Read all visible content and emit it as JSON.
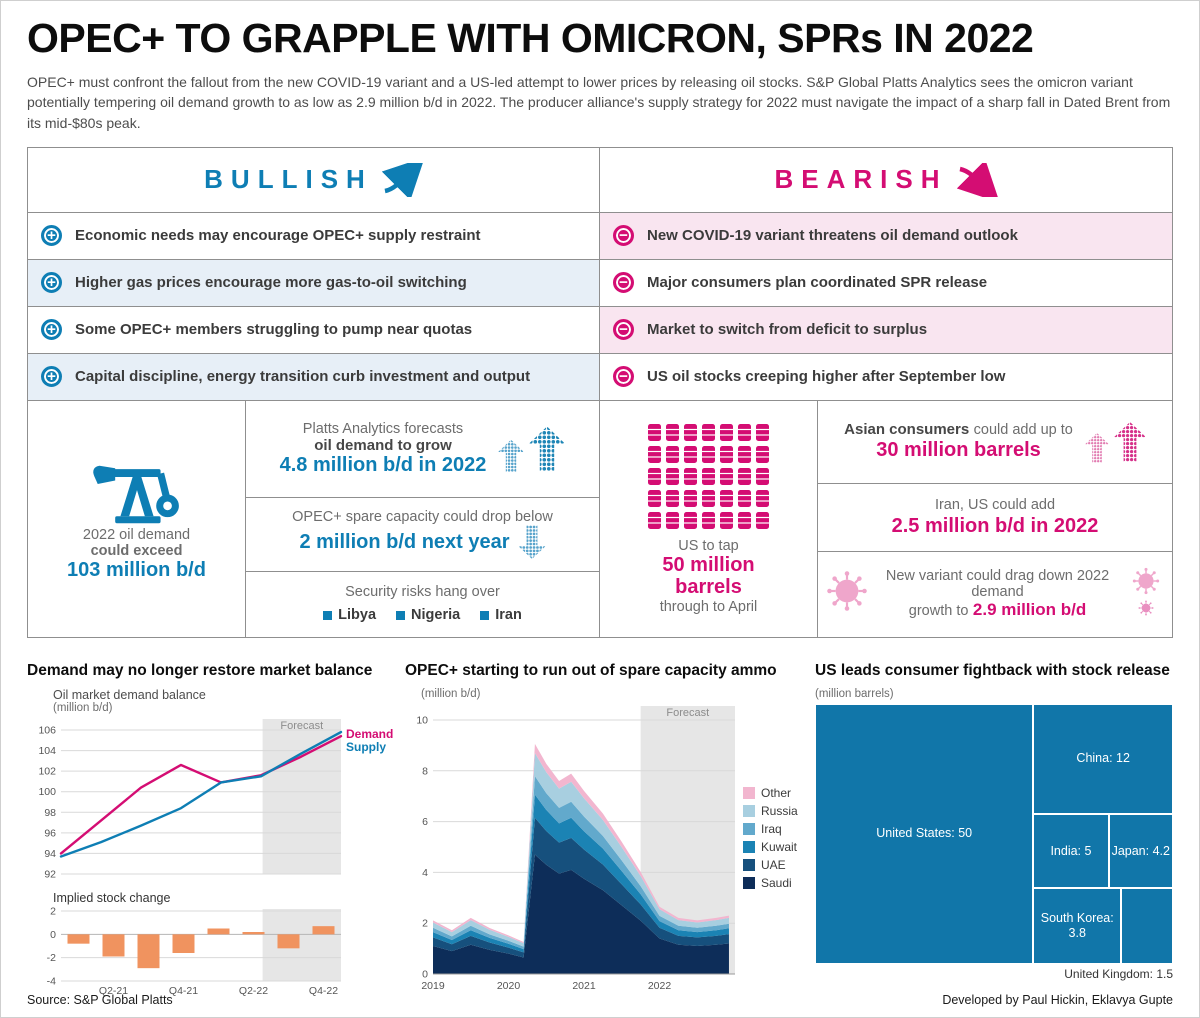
{
  "header": {
    "title": "OPEC+ TO GRAPPLE WITH OMICRON, SPRs IN 2022",
    "intro": "OPEC+ must confront the fallout from the new COVID-19 variant and a US-led attempt to lower prices by releasing oil stocks. S&P Global Platts Analytics sees the omicron variant potentially tempering oil demand growth to as low as 2.9 million b/d in 2022. The producer alliance's supply strategy for 2022 must navigate the impact of a sharp fall in Dated Brent from its mid-$80s peak."
  },
  "table": {
    "bullish": {
      "title": "BULLISH",
      "accent": "#0e7eb4",
      "items": [
        "Economic needs may encourage OPEC+ supply restraint",
        "Higher gas prices encourage more gas-to-oil switching",
        "Some OPEC+ members struggling to pump near quotas",
        "Capital discipline, energy transition curb investment and output"
      ]
    },
    "bearish": {
      "title": "BEARISH",
      "accent": "#d40d73",
      "items": [
        "New COVID-19 variant threatens oil demand outlook",
        "Major consumers plan coordinated SPR release",
        "Market to switch from deficit to surplus",
        "US oil stocks creeping higher after September low"
      ]
    },
    "bullish_info": {
      "demand": {
        "line1": "2022 oil demand",
        "line2": "could exceed",
        "value": "103 million b/d"
      },
      "forecast": {
        "line1": "Platts Analytics forecasts",
        "line2": "oil demand to grow",
        "value": "4.8 million b/d in 2022"
      },
      "spare": {
        "line1": "OPEC+ spare capacity could drop below",
        "value": "2 million b/d next year"
      },
      "security": {
        "label": "Security risks hang over",
        "countries": [
          "Libya",
          "Nigeria",
          "Iran"
        ]
      }
    },
    "bearish_info": {
      "spr": {
        "barrel_count": 35,
        "line1": "US to tap",
        "value": "50 million barrels",
        "line2": "through to April"
      },
      "asian": {
        "lead": "Asian consumers",
        "rest": "could add up to",
        "value": "30 million barrels"
      },
      "iran": {
        "line1": "Iran, US could add",
        "value": "2.5 million b/d in 2022"
      },
      "variant": {
        "line1": "New variant could drag down 2022 demand",
        "line2": "growth to",
        "value": "2.9 million b/d"
      }
    }
  },
  "chart_data": [
    {
      "type": "line",
      "title": "Demand may no longer restore market balance",
      "subtitle": "Oil market demand balance",
      "unit": "(million b/d)",
      "ylim": [
        92,
        106
      ],
      "y_step": 2,
      "n_points": 8,
      "x_ticks": [
        "Q2-21",
        "Q4-21",
        "Q2-22",
        "Q4-22"
      ],
      "x_tick_positions": [
        1,
        3,
        5,
        7
      ],
      "forecast_start_frac": 0.72,
      "forecast_label": "Forecast",
      "series": [
        {
          "name": "Demand",
          "color": "#d40d73",
          "values": [
            94.0,
            97.2,
            100.4,
            102.6,
            100.9,
            101.6,
            103.4,
            105.4
          ]
        },
        {
          "name": "Supply",
          "color": "#0e7eb4",
          "values": [
            93.7,
            95.1,
            96.7,
            98.4,
            100.9,
            101.5,
            103.7,
            105.8
          ]
        }
      ]
    },
    {
      "type": "bar",
      "title": "Implied stock change",
      "ylim": [
        -4,
        2
      ],
      "y_step": 2,
      "color": "#f0935f",
      "values": [
        -0.8,
        -1.9,
        -2.9,
        -1.6,
        0.5,
        0.2,
        -1.2,
        0.7
      ],
      "x_ticks": [
        "Q2-21",
        "Q4-21",
        "Q2-22",
        "Q4-22"
      ],
      "x_tick_positions": [
        1,
        3,
        5,
        7
      ],
      "forecast_start_frac": 0.72
    },
    {
      "type": "area",
      "title": "OPEC+ starting to run out of spare capacity ammo",
      "unit": "(million b/d)",
      "ylim": [
        0,
        10
      ],
      "y_step": 2,
      "xlim": [
        2019,
        2023
      ],
      "x_ticks": [
        2019,
        2020,
        2021,
        2022
      ],
      "forecast_start": 2021.75,
      "forecast_label": "Forecast",
      "x": [
        2019.0,
        2019.25,
        2019.5,
        2019.75,
        2020.0,
        2020.2,
        2020.35,
        2020.5,
        2020.67,
        2020.83,
        2021.0,
        2021.25,
        2021.5,
        2021.75,
        2022.0,
        2022.25,
        2022.5,
        2022.75,
        2022.92
      ],
      "series": [
        {
          "name": "Saudi",
          "color": "#0d2d59",
          "values": [
            1.1,
            0.9,
            1.15,
            0.95,
            0.8,
            0.65,
            4.7,
            4.3,
            3.95,
            4.1,
            3.75,
            3.3,
            2.7,
            2.1,
            1.4,
            1.15,
            1.1,
            1.15,
            1.2
          ]
        },
        {
          "name": "UAE",
          "color": "#16507d",
          "values": [
            0.34,
            0.27,
            0.35,
            0.29,
            0.24,
            0.2,
            1.45,
            1.33,
            1.22,
            1.26,
            1.15,
            1.01,
            0.83,
            0.64,
            0.42,
            0.35,
            0.34,
            0.35,
            0.37
          ]
        },
        {
          "name": "Kuwait",
          "color": "#1b83b4",
          "values": [
            0.21,
            0.17,
            0.22,
            0.18,
            0.15,
            0.13,
            0.91,
            0.83,
            0.76,
            0.79,
            0.72,
            0.63,
            0.52,
            0.4,
            0.26,
            0.22,
            0.21,
            0.22,
            0.23
          ]
        },
        {
          "name": "Iraq",
          "color": "#62a9cc",
          "values": [
            0.17,
            0.14,
            0.18,
            0.14,
            0.12,
            0.1,
            0.73,
            0.66,
            0.61,
            0.63,
            0.58,
            0.5,
            0.42,
            0.32,
            0.21,
            0.18,
            0.17,
            0.18,
            0.18
          ]
        },
        {
          "name": "Russia",
          "color": "#a8cfe0",
          "values": [
            0.21,
            0.17,
            0.22,
            0.18,
            0.15,
            0.13,
            0.91,
            0.83,
            0.76,
            0.79,
            0.72,
            0.63,
            0.52,
            0.4,
            0.26,
            0.22,
            0.21,
            0.22,
            0.23
          ]
        },
        {
          "name": "Other",
          "color": "#f2b6cf",
          "values": [
            0.08,
            0.07,
            0.09,
            0.07,
            0.06,
            0.05,
            0.36,
            0.33,
            0.3,
            0.32,
            0.29,
            0.25,
            0.21,
            0.16,
            0.1,
            0.09,
            0.08,
            0.09,
            0.09
          ]
        }
      ],
      "legend_order": [
        "Other",
        "Russia",
        "Iraq",
        "Kuwait",
        "UAE",
        "Saudi"
      ]
    },
    {
      "type": "treemap",
      "title": "US leads consumer fightback with stock release",
      "unit": "(million barrels)",
      "color": "#1176a9",
      "items": [
        {
          "name": "United States",
          "value": 50
        },
        {
          "name": "China",
          "value": 12
        },
        {
          "name": "India",
          "value": 5
        },
        {
          "name": "Japan",
          "value": 4.2
        },
        {
          "name": "South Korea",
          "value": 3.8
        },
        {
          "name": "United Kingdom",
          "value": 1.5,
          "label_outside": true
        }
      ]
    }
  ],
  "footer": {
    "source": "Source: S&P Global Platts",
    "credit": "Developed by Paul Hickin, Eklavya Gupte"
  }
}
